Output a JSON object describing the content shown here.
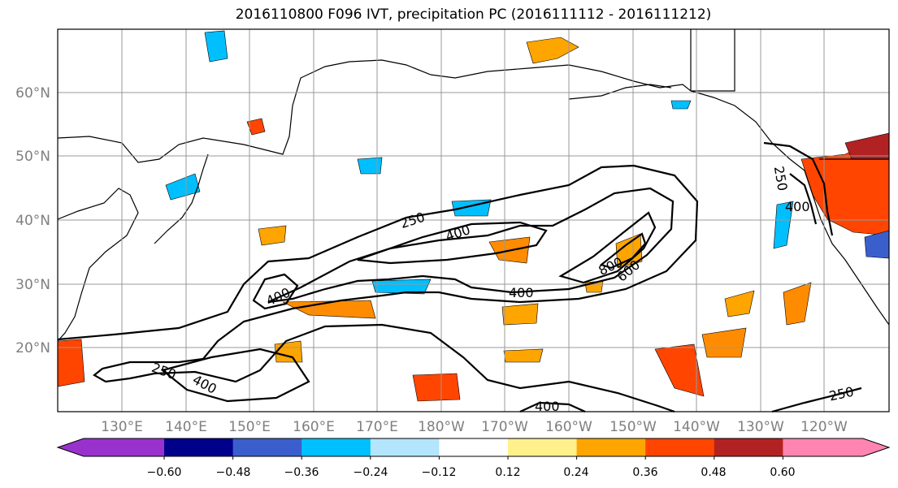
{
  "chart_data": {
    "type": "contour",
    "title": "2016110800 F096 IVT, precipitation PC (2016111112 - 2016111212)",
    "lat_ticks": [
      "20°N",
      "30°N",
      "40°N",
      "50°N",
      "60°N"
    ],
    "lon_ticks": [
      "130°E",
      "140°E",
      "150°E",
      "160°E",
      "170°E",
      "180°W",
      "170°W",
      "160°W",
      "150°W",
      "140°W",
      "130°W",
      "120°W"
    ],
    "colorbar": {
      "tick_labels": [
        "−0.60",
        "−0.48",
        "−0.36",
        "−0.24",
        "−0.12",
        "0.12",
        "0.24",
        "0.36",
        "0.48",
        "0.60"
      ],
      "colors": [
        "#9932cc",
        "#00008b",
        "#3a5fcd",
        "#00bfff",
        "#b3e5fc",
        "#ffffff",
        "#fff08c",
        "#ffa500",
        "#ff4500",
        "#b22222",
        "#ff85b0"
      ]
    },
    "ivt_contour_levels": [
      250,
      400,
      600,
      800
    ],
    "contour_labels": [
      {
        "text": "250"
      },
      {
        "text": "400"
      },
      {
        "text": "400"
      },
      {
        "text": "400"
      },
      {
        "text": "800"
      },
      {
        "text": "600"
      },
      {
        "text": "250"
      },
      {
        "text": "400"
      },
      {
        "text": "250"
      },
      {
        "text": "400"
      },
      {
        "text": "250"
      },
      {
        "text": "400"
      }
    ]
  }
}
